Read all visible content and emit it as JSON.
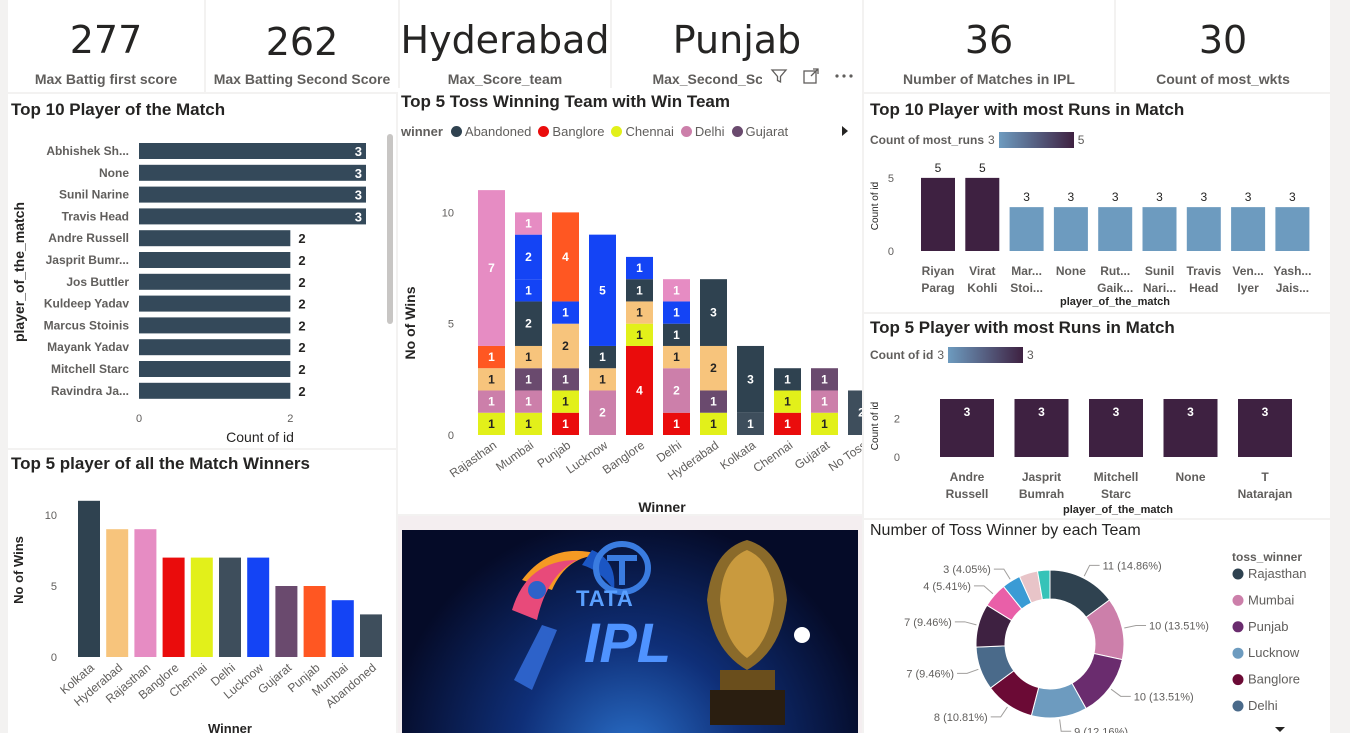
{
  "kpis": [
    {
      "value": "277",
      "label": "Max Battig first score"
    },
    {
      "value": "262",
      "label": "Max Batting Second Score"
    },
    {
      "value": "Hyderabad",
      "label": "Max_Score_team"
    },
    {
      "value": "Punjab",
      "label": "Max_Second_Sco"
    },
    {
      "value": "36",
      "label": "Number of Matches in IPL"
    },
    {
      "value": "30",
      "label": "Count of most_wkts"
    }
  ],
  "colors": {
    "navy": "#2f4250",
    "pink": "#e68cc3",
    "red": "#ea0c0c",
    "yellow": "#e2f01a",
    "peach": "#f7c47c",
    "purple": "#6a4a6e",
    "blue": "#1444f5",
    "orange": "#ff5722",
    "rose": "#cc7faa",
    "dark": "#3e2141",
    "steel": "#6d9bbf",
    "slate": "#3e4e5c"
  },
  "pom_chart": {
    "type": "bar",
    "title": "Top 10 Player of the Match",
    "ylabel": "player_of_the_match",
    "xlabel": "Count of id",
    "categories": [
      "Abhishek Sh...",
      "None",
      "Sunil Narine",
      "Travis Head",
      "Andre Russell",
      "Jasprit Bumr...",
      "Jos Buttler",
      "Kuldeep Yadav",
      "Marcus Stoinis",
      "Mayank Yadav",
      "Mitchell Starc",
      "Ravindra Ja..."
    ],
    "values": [
      3,
      3,
      3,
      3,
      2,
      2,
      2,
      2,
      2,
      2,
      2,
      2
    ],
    "xticks": [
      "0",
      "2"
    ],
    "xlim": [
      0,
      3.2
    ]
  },
  "toss_chart": {
    "type": "bar",
    "title": "Top 5 Toss Winning Team with Win Team",
    "legend_title": "winner",
    "legend": [
      {
        "name": "Abandoned",
        "color": "#2f4250"
      },
      {
        "name": "Banglore",
        "color": "#ea0c0c"
      },
      {
        "name": "Chennai",
        "color": "#e2f01a"
      },
      {
        "name": "Delhi",
        "color": "#cc7faa"
      },
      {
        "name": "Gujarat",
        "color": "#6a4a6e"
      }
    ],
    "xlabel": "Winner",
    "ylabel": "No of Wins",
    "yticks": [
      "0",
      "5",
      "10"
    ],
    "ylim": [
      0,
      11.5
    ],
    "categories": [
      "Rajasthan",
      "Mumbai",
      "Punjab",
      "Lucknow",
      "Banglore",
      "Delhi",
      "Hyderabad",
      "Kolkata",
      "Chennai",
      "Gujarat",
      "No Toss"
    ],
    "stacks": [
      [
        {
          "v": 1,
          "c": "#e2f01a",
          "l": "1"
        },
        {
          "v": 1,
          "c": "#cc7faa",
          "l": "1"
        },
        {
          "v": 1,
          "c": "#f7c47c",
          "l": "1"
        },
        {
          "v": 1,
          "c": "#ff5722",
          "l": "1"
        },
        {
          "v": 7,
          "c": "#e68cc3",
          "l": "7"
        }
      ],
      [
        {
          "v": 1,
          "c": "#e2f01a",
          "l": "1"
        },
        {
          "v": 1,
          "c": "#cc7faa",
          "l": "1"
        },
        {
          "v": 1,
          "c": "#6a4a6e",
          "l": "1"
        },
        {
          "v": 1,
          "c": "#f7c47c",
          "l": "1"
        },
        {
          "v": 2,
          "c": "#2f4250",
          "l": "2"
        },
        {
          "v": 1,
          "c": "#1444f5",
          "l": "1"
        },
        {
          "v": 2,
          "c": "#1444f5",
          "l": "2"
        },
        {
          "v": 1,
          "c": "#e68cc3",
          "l": "1"
        }
      ],
      [
        {
          "v": 1,
          "c": "#ea0c0c",
          "l": "1"
        },
        {
          "v": 1,
          "c": "#e2f01a",
          "l": "1"
        },
        {
          "v": 1,
          "c": "#6a4a6e",
          "l": "1"
        },
        {
          "v": 2,
          "c": "#f7c47c",
          "l": "2"
        },
        {
          "v": 1,
          "c": "#1444f5",
          "l": "1"
        },
        {
          "v": 4,
          "c": "#ff5722",
          "l": "4"
        }
      ],
      [
        {
          "v": 2,
          "c": "#cc7faa",
          "l": "2"
        },
        {
          "v": 1,
          "c": "#f7c47c",
          "l": "1"
        },
        {
          "v": 1,
          "c": "#2f4250",
          "l": "1"
        },
        {
          "v": 5,
          "c": "#1444f5",
          "l": "5"
        }
      ],
      [
        {
          "v": 4,
          "c": "#ea0c0c",
          "l": "4"
        },
        {
          "v": 1,
          "c": "#e2f01a",
          "l": "1"
        },
        {
          "v": 1,
          "c": "#f7c47c",
          "l": "1"
        },
        {
          "v": 1,
          "c": "#2f4250",
          "l": "1"
        },
        {
          "v": 1,
          "c": "#1444f5",
          "l": "1"
        }
      ],
      [
        {
          "v": 1,
          "c": "#ea0c0c",
          "l": "1"
        },
        {
          "v": 2,
          "c": "#cc7faa",
          "l": "2"
        },
        {
          "v": 1,
          "c": "#f7c47c",
          "l": "1"
        },
        {
          "v": 1,
          "c": "#2f4250",
          "l": "1"
        },
        {
          "v": 1,
          "c": "#1444f5",
          "l": "1"
        },
        {
          "v": 1,
          "c": "#e68cc3",
          "l": "1"
        }
      ],
      [
        {
          "v": 1,
          "c": "#e2f01a",
          "l": "1"
        },
        {
          "v": 1,
          "c": "#6a4a6e",
          "l": "1"
        },
        {
          "v": 2,
          "c": "#f7c47c",
          "l": "2"
        },
        {
          "v": 3,
          "c": "#2f4250",
          "l": "3"
        }
      ],
      [
        {
          "v": 1,
          "c": "#3e4e5c",
          "l": "1"
        },
        {
          "v": 3,
          "c": "#2f4250",
          "l": "3"
        }
      ],
      [
        {
          "v": 1,
          "c": "#ea0c0c",
          "l": "1"
        },
        {
          "v": 1,
          "c": "#e2f01a",
          "l": "1"
        },
        {
          "v": 1,
          "c": "#2f4250",
          "l": "1"
        }
      ],
      [
        {
          "v": 1,
          "c": "#e2f01a",
          "l": "1"
        },
        {
          "v": 1,
          "c": "#cc7faa",
          "l": "1"
        },
        {
          "v": 1,
          "c": "#6a4a6e",
          "l": "1"
        }
      ],
      [
        {
          "v": 2,
          "c": "#3e4e5c",
          "l": "2"
        }
      ]
    ]
  },
  "runs_chart": {
    "type": "bar",
    "title": "Top 10 Player with most Runs in Match",
    "legend_title": "Count of most_runs",
    "legend_min": "3",
    "legend_max": "5",
    "ylabel": "Count of id",
    "xlabel": "player_of_the_match",
    "yticks": [
      "0",
      "5"
    ],
    "ylim": [
      0,
      6
    ],
    "categories": [
      [
        "Riyan",
        "Parag"
      ],
      [
        "Virat",
        "Kohli"
      ],
      [
        "Mar...",
        "Stoi..."
      ],
      [
        "None",
        ""
      ],
      [
        "Rut...",
        "Gaik..."
      ],
      [
        "Sunil",
        "Nari..."
      ],
      [
        "Travis",
        "Head"
      ],
      [
        "Ven...",
        "Iyer"
      ],
      [
        "Yash...",
        "Jais..."
      ]
    ],
    "values": [
      5,
      5,
      3,
      3,
      3,
      3,
      3,
      3,
      3
    ],
    "colors": [
      "#3e2141",
      "#3e2141",
      "#6d9bbf",
      "#6d9bbf",
      "#6d9bbf",
      "#6d9bbf",
      "#6d9bbf",
      "#6d9bbf",
      "#6d9bbf"
    ]
  },
  "top5_runs_chart": {
    "type": "bar",
    "title": "Top 5 Player with most Runs in Match",
    "legend_title": "Count of id",
    "legend_min": "3",
    "legend_max": "3",
    "ylabel": "Count of id",
    "xlabel": "player_of_the_match",
    "yticks": [
      "0",
      "2"
    ],
    "ylim": [
      0,
      3.5
    ],
    "categories": [
      [
        "Andre",
        "Russell"
      ],
      [
        "Jasprit",
        "Bumrah"
      ],
      [
        "Mitchell",
        "Starc"
      ],
      [
        "None",
        ""
      ],
      [
        "T",
        "Natarajan"
      ]
    ],
    "values": [
      3,
      3,
      3,
      3,
      3
    ]
  },
  "winners_chart": {
    "type": "bar",
    "title": "Top 5 player of all the Match Winners",
    "xlabel": "Winner",
    "ylabel": "No of Wins",
    "yticks": [
      "0",
      "5",
      "10"
    ],
    "ylim": [
      0,
      12
    ],
    "categories": [
      "Kolkata",
      "Hyderabad",
      "Rajasthan",
      "Banglore",
      "Chennai",
      "Delhi",
      "Lucknow",
      "Gujarat",
      "Punjab",
      "Mumbai",
      "Abandoned"
    ],
    "values": [
      11,
      9,
      9,
      7,
      7,
      7,
      7,
      5,
      5,
      4,
      3
    ],
    "colors": [
      "#2f4250",
      "#f7c47c",
      "#e68cc3",
      "#ea0c0c",
      "#e2f01a",
      "#3e4e5c",
      "#1444f5",
      "#6a4a6e",
      "#ff5722",
      "#1444f5",
      "#3e4e5c"
    ]
  },
  "image_panel": {
    "brand": "TATA",
    "logo": "IPL"
  },
  "pie_chart": {
    "type": "pie",
    "title": "Number of Toss Winner by each Team",
    "legend_title": "toss_winner",
    "legend": [
      {
        "name": "Rajasthan",
        "color": "#2f4250"
      },
      {
        "name": "Mumbai",
        "color": "#cc7faa"
      },
      {
        "name": "Punjab",
        "color": "#6a2c6e"
      },
      {
        "name": "Lucknow",
        "color": "#6d9bbf"
      },
      {
        "name": "Banglore",
        "color": "#6b0a35"
      },
      {
        "name": "Delhi",
        "color": "#4a6a8a"
      }
    ],
    "slices": [
      {
        "value": 11,
        "label": "11 (14.86%)",
        "color": "#2f4250"
      },
      {
        "value": 10,
        "label": "10 (13.51%)",
        "color": "#cc7faa"
      },
      {
        "value": 10,
        "label": "10 (13.51%)",
        "color": "#6a2c6e"
      },
      {
        "value": 9,
        "label": "9 (12.16%)",
        "color": "#6d9bbf"
      },
      {
        "value": 8,
        "label": "8 (10.81%)",
        "color": "#6b0a35"
      },
      {
        "value": 7,
        "label": "7 (9.46%)",
        "color": "#4a6a8a"
      },
      {
        "value": 7,
        "label": "7 (9.46%)",
        "color": "#3e2141"
      },
      {
        "value": 4,
        "label": "4 (5.41%)",
        "color": "#e95fa8"
      },
      {
        "value": 3,
        "label": "3 (4.05%)",
        "color": "#3a9bd5"
      },
      {
        "value": 3,
        "label": "",
        "color": "#e8c4c8"
      },
      {
        "value": 2,
        "label": "",
        "color": "#35c3b8"
      }
    ]
  }
}
